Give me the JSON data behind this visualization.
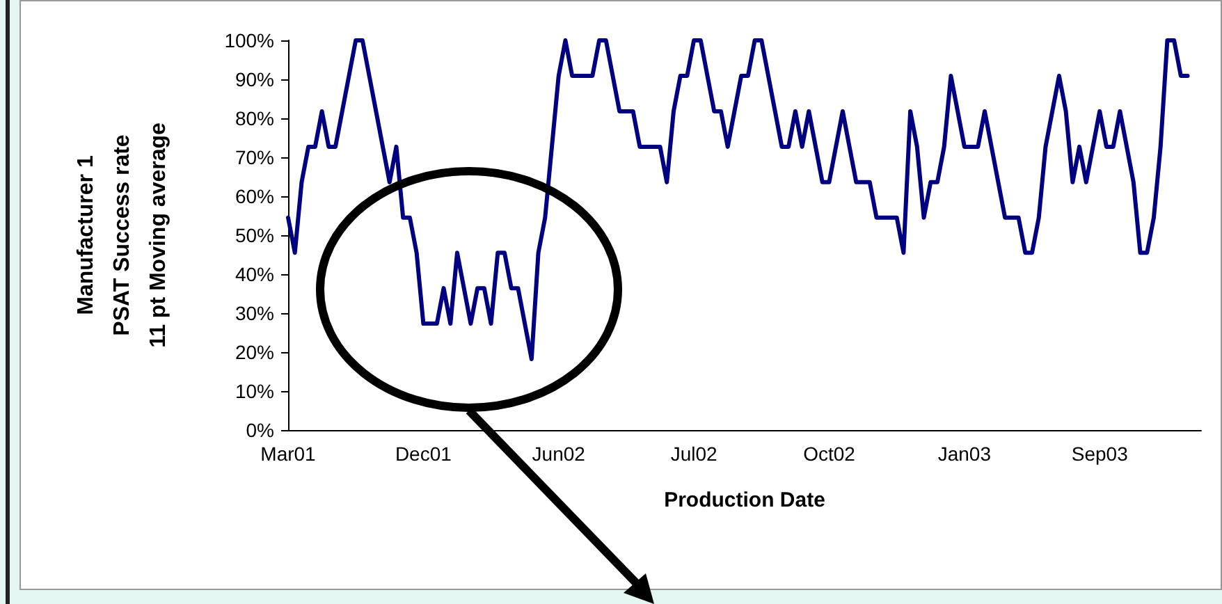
{
  "chart_data": {
    "type": "line",
    "xlabel": "Production Date",
    "ylabel": "Manufacturer 1\nPSAT Success rate\n11 pt Moving average",
    "categories": [
      "Mar01",
      null,
      null,
      null,
      null,
      null,
      null,
      null,
      null,
      null,
      null,
      null,
      null,
      null,
      null,
      null,
      null,
      null,
      null,
      null,
      "Dec01",
      null,
      null,
      null,
      null,
      null,
      null,
      null,
      null,
      null,
      null,
      null,
      null,
      null,
      null,
      null,
      null,
      null,
      null,
      null,
      "Jun02",
      null,
      null,
      null,
      null,
      null,
      null,
      null,
      null,
      null,
      null,
      null,
      null,
      null,
      null,
      null,
      null,
      null,
      null,
      null,
      "Jul02",
      null,
      null,
      null,
      null,
      null,
      null,
      null,
      null,
      null,
      null,
      null,
      null,
      null,
      null,
      null,
      null,
      null,
      null,
      null,
      "Oct02",
      null,
      null,
      null,
      null,
      null,
      null,
      null,
      null,
      null,
      null,
      null,
      null,
      null,
      null,
      null,
      null,
      null,
      null,
      null,
      "Jan03",
      null,
      null,
      null,
      null,
      null,
      null,
      null,
      null,
      null,
      null,
      null,
      null,
      null,
      null,
      null,
      null,
      null,
      null,
      null,
      "Sep03",
      null,
      null,
      null,
      null,
      null,
      null,
      null,
      null,
      null,
      null,
      null,
      null,
      null,
      null,
      null
    ],
    "series": [
      {
        "color": "#000080",
        "values": [
          54.5,
          45.5,
          63.6,
          72.7,
          72.7,
          81.8,
          72.7,
          72.7,
          81.8,
          90.9,
          100,
          100,
          90.9,
          81.8,
          72.7,
          63.6,
          72.7,
          54.5,
          54.5,
          45.5,
          27.3,
          27.3,
          27.3,
          36.4,
          27.3,
          45.5,
          36.4,
          27.3,
          36.4,
          36.4,
          27.3,
          45.5,
          45.5,
          36.4,
          36.4,
          27.3,
          18.2,
          45.5,
          54.5,
          72.7,
          90.9,
          100,
          90.9,
          90.9,
          90.9,
          90.9,
          100,
          100,
          90.9,
          81.8,
          81.8,
          81.8,
          72.7,
          72.7,
          72.7,
          72.7,
          63.6,
          81.8,
          90.9,
          90.9,
          100,
          100,
          90.9,
          81.8,
          81.8,
          72.7,
          81.8,
          90.9,
          90.9,
          100,
          100,
          90.9,
          81.8,
          72.7,
          72.7,
          81.8,
          72.7,
          81.8,
          72.7,
          63.6,
          63.6,
          72.7,
          81.8,
          72.7,
          63.6,
          63.6,
          63.6,
          54.5,
          54.5,
          54.5,
          54.5,
          45.5,
          81.8,
          72.7,
          54.5,
          63.6,
          63.6,
          72.7,
          90.9,
          81.8,
          72.7,
          72.7,
          72.7,
          81.8,
          72.7,
          63.6,
          54.5,
          54.5,
          54.5,
          45.5,
          45.5,
          54.5,
          72.7,
          81.8,
          90.9,
          81.8,
          63.6,
          72.7,
          63.6,
          72.7,
          81.8,
          72.7,
          72.7,
          81.8,
          72.7,
          63.6,
          45.5,
          45.5,
          54.5,
          72.7,
          100,
          100,
          90.9,
          90.9,
          null,
          null
        ]
      }
    ],
    "ylim": [
      0,
      100
    ],
    "yticks": [
      {
        "value": 0,
        "label": "0%"
      },
      {
        "value": 10,
        "label": "10%"
      },
      {
        "value": 20,
        "label": "20%"
      },
      {
        "value": 30,
        "label": "30%"
      },
      {
        "value": 40,
        "label": "40%"
      },
      {
        "value": 50,
        "label": "50%"
      },
      {
        "value": 60,
        "label": "60%"
      },
      {
        "value": 70,
        "label": "70%"
      },
      {
        "value": 80,
        "label": "80%"
      },
      {
        "value": 90,
        "label": "90%"
      },
      {
        "value": 100,
        "label": "100%"
      }
    ],
    "grid": false,
    "marker": "none",
    "line_style": "solid"
  }
}
